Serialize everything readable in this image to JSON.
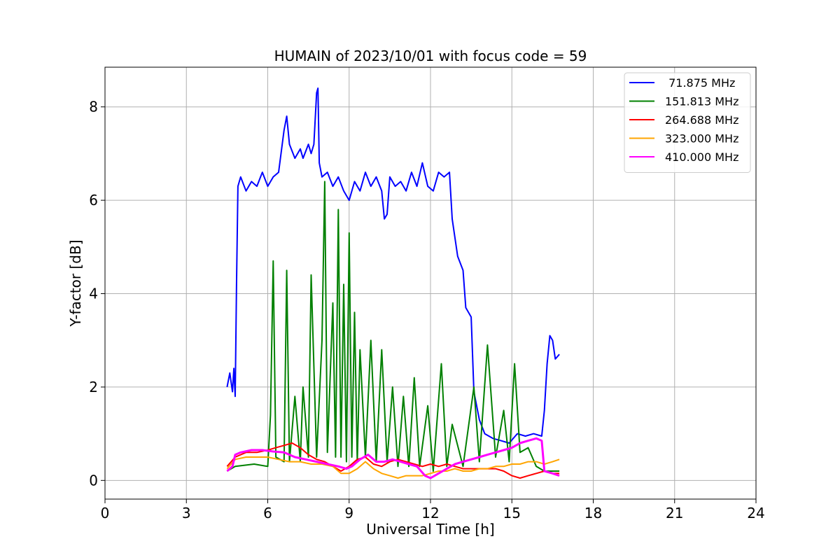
{
  "chart_data": {
    "type": "line",
    "title": "HUMAIN of 2023/10/01 with focus code = 59",
    "xlabel": "Universal Time [h]",
    "ylabel": "Y-factor [dB]",
    "xlim": [
      0,
      24
    ],
    "ylim": [
      -0.4,
      8.85
    ],
    "xticks": [
      0,
      3,
      6,
      9,
      12,
      15,
      18,
      21,
      24
    ],
    "xtick_labels": [
      "0",
      "3",
      "6",
      "9",
      "12",
      "15",
      "18",
      "21",
      "24"
    ],
    "yticks": [
      0,
      2,
      4,
      6,
      8
    ],
    "ytick_labels": [
      "0",
      "2",
      "4",
      "6",
      "8"
    ],
    "grid": true,
    "legend_position": "top-right",
    "series": [
      {
        "name": " 71.875 MHz",
        "color": "#0000ff",
        "points": [
          [
            4.5,
            2.0
          ],
          [
            4.6,
            2.3
          ],
          [
            4.7,
            1.9
          ],
          [
            4.75,
            2.4
          ],
          [
            4.8,
            1.8
          ],
          [
            4.85,
            4.2
          ],
          [
            4.9,
            6.3
          ],
          [
            5.0,
            6.5
          ],
          [
            5.2,
            6.2
          ],
          [
            5.4,
            6.4
          ],
          [
            5.6,
            6.3
          ],
          [
            5.8,
            6.6
          ],
          [
            6.0,
            6.3
          ],
          [
            6.2,
            6.5
          ],
          [
            6.4,
            6.6
          ],
          [
            6.6,
            7.5
          ],
          [
            6.7,
            7.8
          ],
          [
            6.8,
            7.2
          ],
          [
            7.0,
            6.9
          ],
          [
            7.2,
            7.1
          ],
          [
            7.3,
            6.9
          ],
          [
            7.5,
            7.2
          ],
          [
            7.6,
            7.0
          ],
          [
            7.7,
            7.2
          ],
          [
            7.8,
            8.3
          ],
          [
            7.85,
            8.4
          ],
          [
            7.9,
            6.8
          ],
          [
            8.0,
            6.5
          ],
          [
            8.2,
            6.6
          ],
          [
            8.4,
            6.3
          ],
          [
            8.6,
            6.5
          ],
          [
            8.8,
            6.2
          ],
          [
            9.0,
            6.0
          ],
          [
            9.2,
            6.4
          ],
          [
            9.4,
            6.2
          ],
          [
            9.6,
            6.6
          ],
          [
            9.8,
            6.3
          ],
          [
            10.0,
            6.5
          ],
          [
            10.2,
            6.2
          ],
          [
            10.3,
            5.6
          ],
          [
            10.4,
            5.7
          ],
          [
            10.5,
            6.5
          ],
          [
            10.7,
            6.3
          ],
          [
            10.9,
            6.4
          ],
          [
            11.1,
            6.2
          ],
          [
            11.3,
            6.6
          ],
          [
            11.5,
            6.3
          ],
          [
            11.7,
            6.8
          ],
          [
            11.9,
            6.3
          ],
          [
            12.1,
            6.2
          ],
          [
            12.3,
            6.6
          ],
          [
            12.5,
            6.5
          ],
          [
            12.7,
            6.6
          ],
          [
            12.8,
            5.6
          ],
          [
            12.9,
            5.2
          ],
          [
            13.0,
            4.8
          ],
          [
            13.2,
            4.5
          ],
          [
            13.3,
            3.7
          ],
          [
            13.5,
            3.5
          ],
          [
            13.6,
            1.9
          ],
          [
            13.8,
            1.3
          ],
          [
            14.0,
            1.0
          ],
          [
            14.3,
            0.9
          ],
          [
            14.6,
            0.85
          ],
          [
            14.9,
            0.8
          ],
          [
            15.2,
            1.0
          ],
          [
            15.5,
            0.95
          ],
          [
            15.8,
            1.0
          ],
          [
            16.1,
            0.95
          ],
          [
            16.2,
            1.5
          ],
          [
            16.3,
            2.5
          ],
          [
            16.4,
            3.1
          ],
          [
            16.5,
            3.0
          ],
          [
            16.6,
            2.6
          ],
          [
            16.75,
            2.7
          ]
        ]
      },
      {
        "name": "151.813 MHz",
        "color": "#008000",
        "points": [
          [
            4.5,
            0.2
          ],
          [
            4.8,
            0.3
          ],
          [
            5.5,
            0.35
          ],
          [
            6.0,
            0.3
          ],
          [
            6.1,
            1.4
          ],
          [
            6.2,
            4.7
          ],
          [
            6.3,
            0.5
          ],
          [
            6.6,
            0.4
          ],
          [
            6.7,
            4.5
          ],
          [
            6.8,
            0.4
          ],
          [
            7.0,
            1.8
          ],
          [
            7.2,
            0.4
          ],
          [
            7.3,
            2.0
          ],
          [
            7.5,
            0.5
          ],
          [
            7.6,
            4.4
          ],
          [
            7.8,
            0.5
          ],
          [
            8.0,
            3.0
          ],
          [
            8.1,
            6.4
          ],
          [
            8.2,
            0.6
          ],
          [
            8.4,
            3.8
          ],
          [
            8.5,
            0.5
          ],
          [
            8.6,
            5.8
          ],
          [
            8.7,
            0.5
          ],
          [
            8.8,
            4.2
          ],
          [
            8.9,
            0.4
          ],
          [
            9.0,
            5.3
          ],
          [
            9.1,
            0.5
          ],
          [
            9.2,
            3.6
          ],
          [
            9.3,
            0.4
          ],
          [
            9.4,
            2.8
          ],
          [
            9.6,
            0.5
          ],
          [
            9.8,
            3.0
          ],
          [
            10.0,
            0.4
          ],
          [
            10.2,
            2.8
          ],
          [
            10.4,
            0.4
          ],
          [
            10.6,
            2.0
          ],
          [
            10.8,
            0.3
          ],
          [
            11.0,
            1.8
          ],
          [
            11.2,
            0.3
          ],
          [
            11.4,
            2.2
          ],
          [
            11.6,
            0.3
          ],
          [
            11.9,
            1.6
          ],
          [
            12.1,
            0.2
          ],
          [
            12.4,
            2.5
          ],
          [
            12.6,
            0.3
          ],
          [
            12.8,
            1.2
          ],
          [
            13.2,
            0.3
          ],
          [
            13.6,
            2.0
          ],
          [
            13.8,
            0.4
          ],
          [
            14.1,
            2.9
          ],
          [
            14.4,
            0.5
          ],
          [
            14.7,
            1.5
          ],
          [
            14.9,
            0.4
          ],
          [
            15.1,
            2.5
          ],
          [
            15.3,
            0.6
          ],
          [
            15.6,
            0.7
          ],
          [
            15.9,
            0.3
          ],
          [
            16.2,
            0.2
          ],
          [
            16.5,
            0.2
          ],
          [
            16.75,
            0.2
          ]
        ]
      },
      {
        "name": "264.688 MHz",
        "color": "#ff0000",
        "points": [
          [
            4.5,
            0.3
          ],
          [
            4.8,
            0.5
          ],
          [
            5.2,
            0.6
          ],
          [
            5.6,
            0.6
          ],
          [
            6.0,
            0.65
          ],
          [
            6.3,
            0.7
          ],
          [
            6.6,
            0.75
          ],
          [
            6.9,
            0.8
          ],
          [
            7.2,
            0.7
          ],
          [
            7.5,
            0.55
          ],
          [
            7.8,
            0.45
          ],
          [
            8.1,
            0.4
          ],
          [
            8.4,
            0.3
          ],
          [
            8.7,
            0.2
          ],
          [
            9.0,
            0.3
          ],
          [
            9.3,
            0.45
          ],
          [
            9.6,
            0.5
          ],
          [
            9.9,
            0.35
          ],
          [
            10.2,
            0.3
          ],
          [
            10.5,
            0.4
          ],
          [
            10.8,
            0.45
          ],
          [
            11.1,
            0.4
          ],
          [
            11.4,
            0.35
          ],
          [
            11.7,
            0.3
          ],
          [
            12.0,
            0.35
          ],
          [
            12.3,
            0.3
          ],
          [
            12.6,
            0.35
          ],
          [
            12.9,
            0.3
          ],
          [
            13.2,
            0.25
          ],
          [
            13.5,
            0.25
          ],
          [
            13.8,
            0.25
          ],
          [
            14.1,
            0.25
          ],
          [
            14.4,
            0.25
          ],
          [
            14.7,
            0.2
          ],
          [
            15.0,
            0.1
          ],
          [
            15.3,
            0.05
          ],
          [
            15.6,
            0.1
          ],
          [
            15.9,
            0.15
          ],
          [
            16.2,
            0.2
          ],
          [
            16.5,
            0.15
          ],
          [
            16.75,
            0.15
          ]
        ]
      },
      {
        "name": "323.000 MHz",
        "color": "#ffa500",
        "points": [
          [
            4.5,
            0.25
          ],
          [
            4.8,
            0.45
          ],
          [
            5.2,
            0.5
          ],
          [
            5.6,
            0.5
          ],
          [
            6.0,
            0.5
          ],
          [
            6.4,
            0.45
          ],
          [
            6.8,
            0.4
          ],
          [
            7.2,
            0.4
          ],
          [
            7.6,
            0.35
          ],
          [
            8.0,
            0.35
          ],
          [
            8.4,
            0.3
          ],
          [
            8.7,
            0.15
          ],
          [
            9.0,
            0.15
          ],
          [
            9.3,
            0.25
          ],
          [
            9.6,
            0.4
          ],
          [
            9.9,
            0.25
          ],
          [
            10.2,
            0.15
          ],
          [
            10.5,
            0.1
          ],
          [
            10.8,
            0.05
          ],
          [
            11.1,
            0.1
          ],
          [
            11.4,
            0.1
          ],
          [
            11.7,
            0.1
          ],
          [
            12.0,
            0.15
          ],
          [
            12.3,
            0.2
          ],
          [
            12.6,
            0.2
          ],
          [
            12.9,
            0.25
          ],
          [
            13.2,
            0.2
          ],
          [
            13.5,
            0.2
          ],
          [
            13.8,
            0.25
          ],
          [
            14.1,
            0.25
          ],
          [
            14.4,
            0.3
          ],
          [
            14.7,
            0.3
          ],
          [
            15.0,
            0.35
          ],
          [
            15.3,
            0.35
          ],
          [
            15.6,
            0.4
          ],
          [
            15.9,
            0.4
          ],
          [
            16.2,
            0.35
          ],
          [
            16.5,
            0.4
          ],
          [
            16.75,
            0.45
          ]
        ]
      },
      {
        "name": "410.000 MHz",
        "color": "#ff00ff",
        "points": [
          [
            4.5,
            0.2
          ],
          [
            4.7,
            0.3
          ],
          [
            4.8,
            0.55
          ],
          [
            5.0,
            0.6
          ],
          [
            5.4,
            0.65
          ],
          [
            5.8,
            0.65
          ],
          [
            6.2,
            0.62
          ],
          [
            6.6,
            0.6
          ],
          [
            7.0,
            0.5
          ],
          [
            7.4,
            0.45
          ],
          [
            7.8,
            0.4
          ],
          [
            8.2,
            0.35
          ],
          [
            8.6,
            0.3
          ],
          [
            8.9,
            0.25
          ],
          [
            9.1,
            0.3
          ],
          [
            9.4,
            0.45
          ],
          [
            9.7,
            0.55
          ],
          [
            10.0,
            0.4
          ],
          [
            10.3,
            0.4
          ],
          [
            10.6,
            0.45
          ],
          [
            10.9,
            0.4
          ],
          [
            11.2,
            0.35
          ],
          [
            11.5,
            0.3
          ],
          [
            11.8,
            0.1
          ],
          [
            12.0,
            0.05
          ],
          [
            12.3,
            0.15
          ],
          [
            12.6,
            0.25
          ],
          [
            12.9,
            0.35
          ],
          [
            13.2,
            0.4
          ],
          [
            13.5,
            0.45
          ],
          [
            13.8,
            0.5
          ],
          [
            14.1,
            0.55
          ],
          [
            14.4,
            0.6
          ],
          [
            14.7,
            0.65
          ],
          [
            15.0,
            0.7
          ],
          [
            15.3,
            0.8
          ],
          [
            15.6,
            0.85
          ],
          [
            15.9,
            0.9
          ],
          [
            16.1,
            0.85
          ],
          [
            16.2,
            0.2
          ],
          [
            16.5,
            0.15
          ],
          [
            16.75,
            0.1
          ]
        ]
      }
    ]
  }
}
